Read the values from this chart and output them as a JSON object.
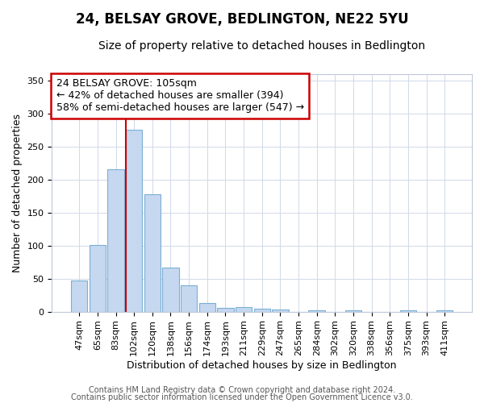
{
  "title1": "24, BELSAY GROVE, BEDLINGTON, NE22 5YU",
  "title2": "Size of property relative to detached houses in Bedlington",
  "xlabel": "Distribution of detached houses by size in Bedlington",
  "ylabel": "Number of detached properties",
  "categories": [
    "47sqm",
    "65sqm",
    "83sqm",
    "102sqm",
    "120sqm",
    "138sqm",
    "156sqm",
    "174sqm",
    "193sqm",
    "211sqm",
    "229sqm",
    "247sqm",
    "265sqm",
    "284sqm",
    "302sqm",
    "320sqm",
    "338sqm",
    "356sqm",
    "375sqm",
    "393sqm",
    "411sqm"
  ],
  "values": [
    47,
    101,
    215,
    275,
    178,
    67,
    40,
    13,
    5,
    7,
    4,
    3,
    0,
    2,
    0,
    2,
    0,
    0,
    2,
    0,
    2
  ],
  "bar_color": "#c5d8f0",
  "bar_edge_color": "#7bafd4",
  "redline_color": "#cc0000",
  "annotation_text_line1": "24 BELSAY GROVE: 105sqm",
  "annotation_text_line2": "← 42% of detached houses are smaller (394)",
  "annotation_text_line3": "58% of semi-detached houses are larger (547) →",
  "annotation_box_color": "white",
  "annotation_box_edge_color": "#cc0000",
  "footnote1": "Contains HM Land Registry data © Crown copyright and database right 2024.",
  "footnote2": "Contains public sector information licensed under the Open Government Licence v3.0.",
  "ylim": [
    0,
    360
  ],
  "yticks": [
    0,
    50,
    100,
    150,
    200,
    250,
    300,
    350
  ],
  "plot_bg_color": "#ffffff",
  "fig_bg_color": "#ffffff",
  "title1_fontsize": 12,
  "title2_fontsize": 10,
  "xlabel_fontsize": 9,
  "ylabel_fontsize": 9,
  "tick_fontsize": 8,
  "annot_fontsize": 9,
  "footnote_fontsize": 7
}
